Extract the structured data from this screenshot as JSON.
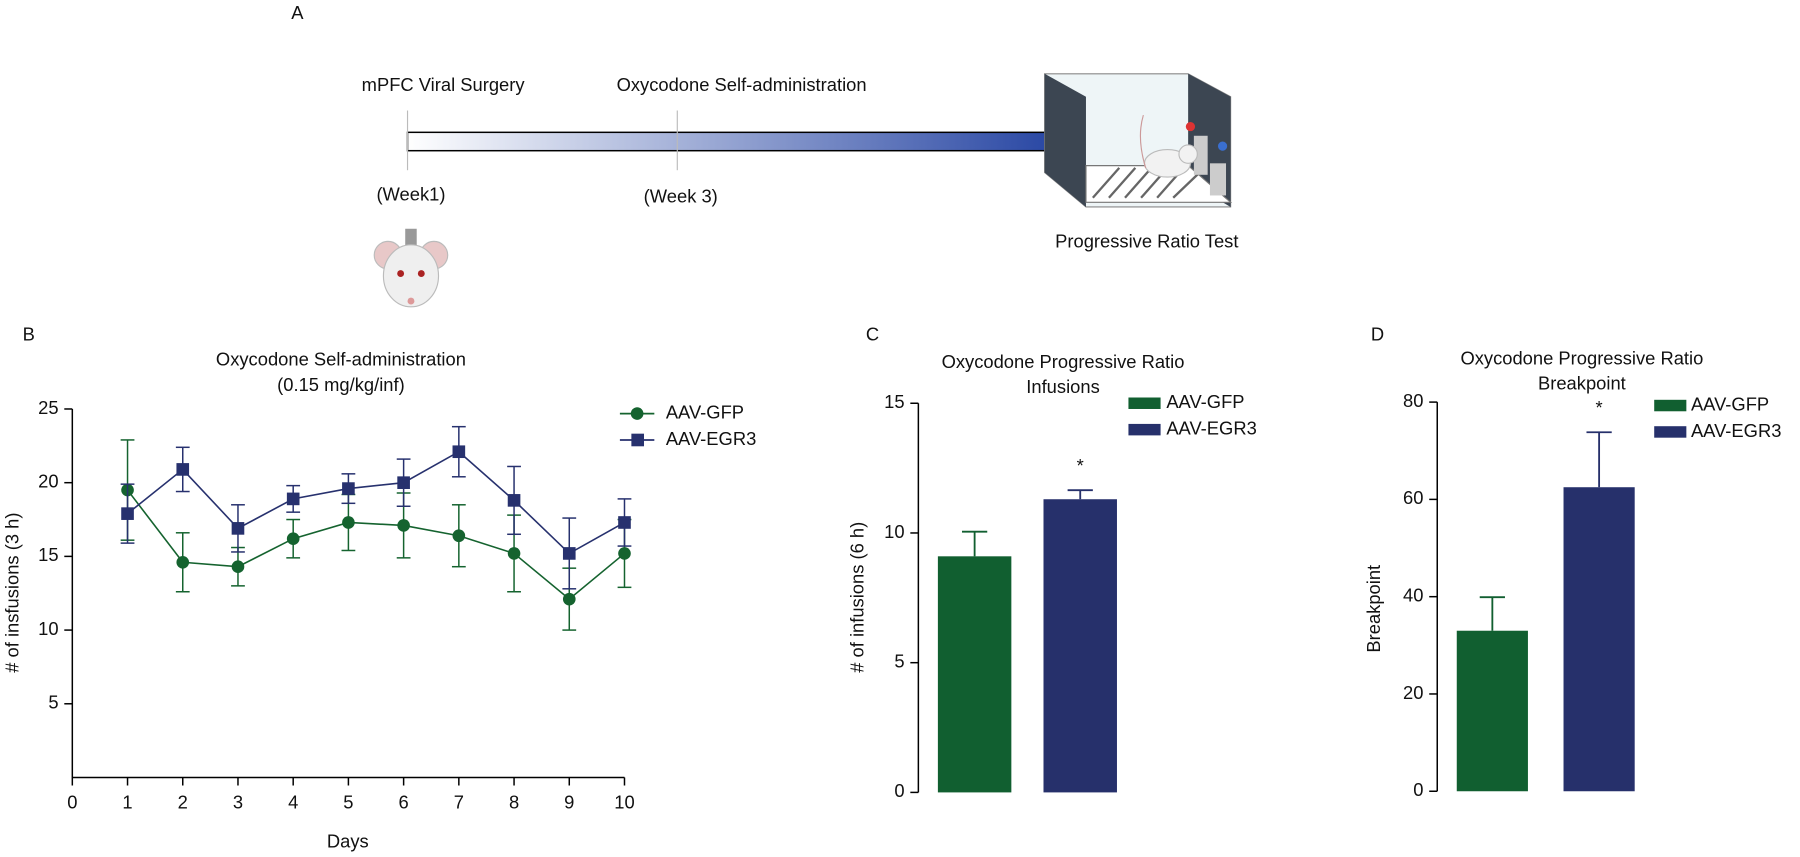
{
  "timeline": {
    "panel": "A",
    "events": [
      {
        "label": "mPFC Viral Surgery",
        "time": "(Week1)"
      },
      {
        "label": "Oxycodone Self-administration",
        "time": "(Week 3)"
      }
    ],
    "end_label": "Progressive Ratio Test"
  },
  "chart_data": [
    {
      "panel": "B",
      "type": "line",
      "title": [
        "Oxycodone Self-administration",
        "(0.15 mg/kg/inf)"
      ],
      "x_label": "Days",
      "y_label": "# of insfusions (3 h)",
      "x": [
        1,
        2,
        3,
        4,
        5,
        6,
        7,
        8,
        9,
        10
      ],
      "xlim": [
        0,
        10
      ],
      "xticks": [
        0,
        1,
        2,
        3,
        4,
        5,
        6,
        7,
        8,
        9,
        10
      ],
      "ylim": [
        0,
        25
      ],
      "yticks": [
        5,
        10,
        15,
        20,
        25
      ],
      "legend": "upper right",
      "series": [
        {
          "name": "AAV-GFP",
          "color": "#15632f",
          "marker": "circle",
          "values": [
            19.5,
            14.6,
            14.3,
            16.2,
            17.3,
            17.1,
            16.4,
            15.2,
            12.1,
            15.2
          ],
          "errors": [
            3.4,
            2.0,
            1.3,
            1.3,
            1.9,
            2.2,
            2.1,
            2.6,
            2.1,
            2.3
          ]
        },
        {
          "name": "AAV-EGR3",
          "color": "#27316e",
          "marker": "square",
          "values": [
            17.9,
            20.9,
            16.9,
            18.9,
            19.6,
            20.0,
            22.1,
            18.8,
            15.2,
            17.3
          ],
          "errors": [
            2.0,
            1.5,
            1.6,
            0.9,
            1.0,
            1.6,
            1.7,
            2.3,
            2.4,
            1.6
          ]
        }
      ]
    },
    {
      "panel": "C",
      "type": "bar",
      "title": [
        "Oxycodone Progressive Ratio",
        "Infusions"
      ],
      "y_label": "# of infusions (6 h)",
      "ylim": [
        0,
        15
      ],
      "yticks": [
        0,
        5,
        10,
        15
      ],
      "legend": "upper right",
      "annotation": "*",
      "series": [
        {
          "name": "AAV-GFP",
          "color": "#115f30",
          "values": [
            9.1
          ],
          "errors": [
            0.95
          ]
        },
        {
          "name": "AAV-EGR3",
          "color": "#26306b",
          "values": [
            11.3
          ],
          "errors": [
            0.35
          ]
        }
      ]
    },
    {
      "panel": "D",
      "type": "bar",
      "title": [
        "Oxycodone Progressive Ratio",
        "Breakpoint"
      ],
      "y_label": "Breakpoint",
      "ylim": [
        0,
        80
      ],
      "yticks": [
        0,
        20,
        40,
        60,
        80
      ],
      "legend": "upper right",
      "annotation": "*",
      "series": [
        {
          "name": "AAV-GFP",
          "color": "#115f30",
          "values": [
            33.0
          ],
          "errors": [
            6.9
          ]
        },
        {
          "name": "AAV-EGR3",
          "color": "#26306b",
          "values": [
            62.5
          ],
          "errors": [
            11.3
          ]
        }
      ]
    }
  ]
}
